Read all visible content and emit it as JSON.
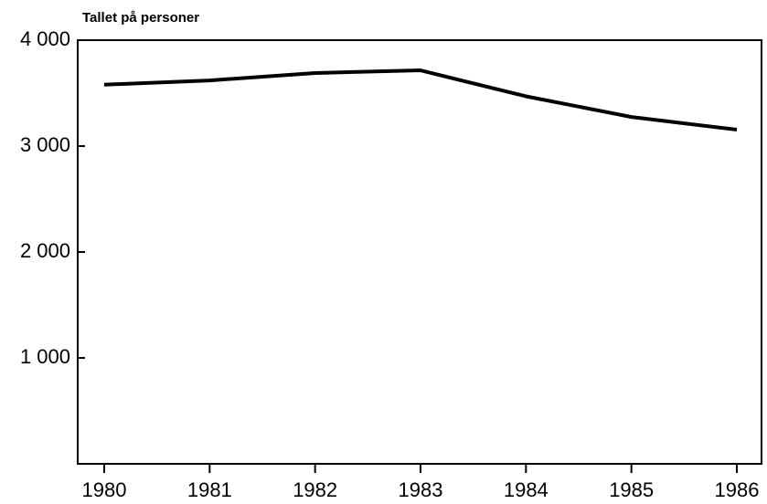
{
  "chart_data": {
    "type": "line",
    "y_label": "Tallet på personer",
    "categories": [
      "1980",
      "1981",
      "1982",
      "1983",
      "1984",
      "1985",
      "1986"
    ],
    "series": [
      {
        "name": "Tallet på personer",
        "color": "#000000",
        "values": [
          3580,
          3620,
          3690,
          3715,
          3470,
          3275,
          3155
        ]
      }
    ],
    "ylim": [
      0,
      4000
    ],
    "yticks": [
      {
        "value": 1000,
        "label": "1 000"
      },
      {
        "value": 2000,
        "label": "2 000"
      },
      {
        "value": 3000,
        "label": "3 000"
      },
      {
        "value": 4000,
        "label": "4 000"
      }
    ],
    "grid": false
  }
}
